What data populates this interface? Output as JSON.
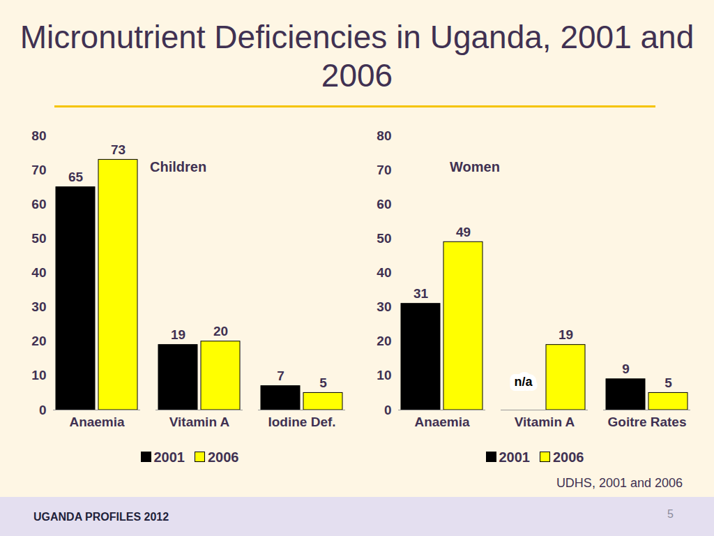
{
  "title": "Micronutrient Deficiencies in Uganda, 2001 and 2006",
  "source": "UDHS, 2001 and 2006",
  "footer": "UGANDA PROFILES 2012",
  "page": 5,
  "chart_data": [
    {
      "type": "bar",
      "title": "Children",
      "categories": [
        "Anaemia",
        "Vitamin A",
        "Iodine Def."
      ],
      "series": [
        {
          "name": "2001",
          "color": "#000000",
          "values": [
            65,
            19,
            7
          ]
        },
        {
          "name": "2006",
          "color": "#ffff00",
          "values": [
            73,
            20,
            5
          ]
        }
      ],
      "ylim": [
        0,
        80
      ],
      "yticks": [
        0,
        10,
        20,
        30,
        40,
        50,
        60,
        70,
        80
      ],
      "data_labels": true,
      "legend": "bottom"
    },
    {
      "type": "bar",
      "title": "Women",
      "categories": [
        "Anaemia",
        "Vitamin A",
        "Goitre Rates"
      ],
      "series": [
        {
          "name": "2001",
          "color": "#000000",
          "values": [
            31,
            null,
            9
          ],
          "value_labels": [
            "31",
            "n/a",
            "9"
          ]
        },
        {
          "name": "2006",
          "color": "#ffff00",
          "values": [
            49,
            19,
            5
          ]
        }
      ],
      "ylim": [
        0,
        80
      ],
      "yticks": [
        0,
        10,
        20,
        30,
        40,
        50,
        60,
        70,
        80
      ],
      "data_labels": true,
      "legend": "bottom"
    }
  ]
}
